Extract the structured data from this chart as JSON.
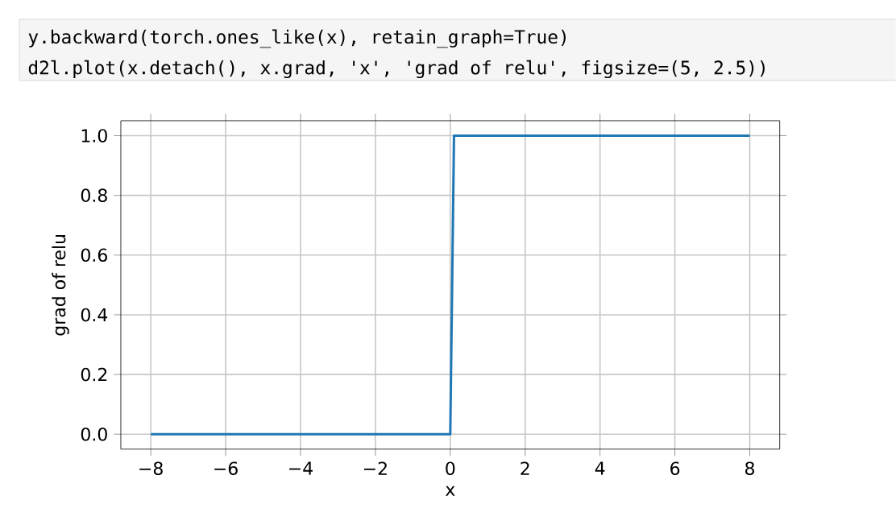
{
  "chart_data": {
    "type": "line",
    "xlabel": "x",
    "ylabel": "grad of relu",
    "x": [
      -8,
      0,
      0.1,
      8
    ],
    "series": [
      {
        "color": "#1f77b4",
        "values": [
          0,
          0,
          1,
          1
        ]
      }
    ],
    "xlim": [
      -8.8,
      8.8
    ],
    "ylim": [
      -0.05,
      1.05
    ],
    "xticks": [
      {
        "value": -8,
        "label": "−8"
      },
      {
        "value": -6,
        "label": "−6"
      },
      {
        "value": -4,
        "label": "−4"
      },
      {
        "value": -2,
        "label": "−2"
      },
      0,
      2,
      4,
      6,
      8
    ],
    "yticks": [
      {
        "value": 0,
        "label": "0.0"
      },
      {
        "value": 0.2,
        "label": "0.2"
      },
      {
        "value": 0.4,
        "label": "0.4"
      },
      {
        "value": 0.6,
        "label": "0.6"
      },
      {
        "value": 0.8,
        "label": "0.8"
      },
      {
        "value": 1,
        "label": "1.0"
      }
    ],
    "grid": true,
    "marker": "none",
    "line_style": "solid",
    "annotations": [
      "y.backward(torch.ones_like(x), retain_graph=True)",
      "d2l.plot(x.detach(), x.grad, 'x', 'grad of relu', figsize=(5, 2.5))"
    ]
  }
}
